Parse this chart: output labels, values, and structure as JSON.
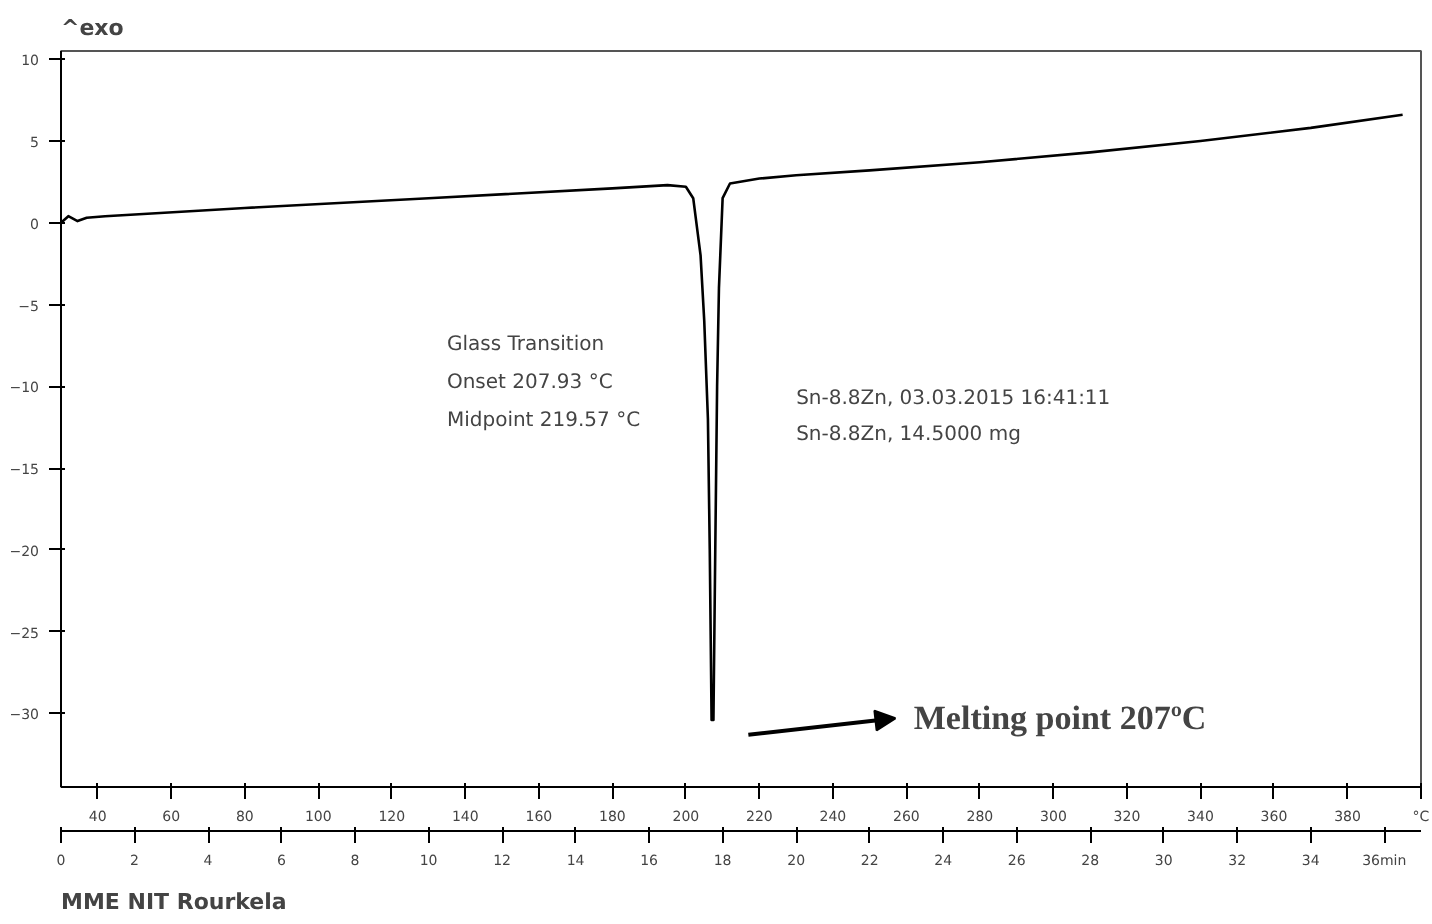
{
  "chart_data": {
    "type": "line",
    "ylabel": "^exo",
    "x": [
      0,
      0.2,
      0.45,
      0.7,
      1.2,
      5,
      10,
      15,
      16.5,
      17.0,
      17.2,
      17.4,
      17.5,
      17.6,
      17.65,
      17.7,
      17.75,
      17.8,
      17.85,
      17.9,
      18.0,
      18.2,
      19,
      20,
      22,
      25,
      28,
      31,
      34,
      36.5
    ],
    "series": [
      {
        "color": "#000000",
        "values": [
          0.0,
          0.4,
          0.1,
          0.3,
          0.4,
          0.9,
          1.5,
          2.1,
          2.3,
          2.2,
          1.5,
          -2,
          -6,
          -12,
          -20,
          -30.4,
          -30.4,
          -20,
          -10,
          -4,
          1.5,
          2.4,
          2.7,
          2.9,
          3.2,
          3.7,
          4.3,
          5.0,
          5.8,
          6.6
        ]
      }
    ],
    "xlim": [
      0,
      37
    ],
    "xticks": [
      0,
      2,
      4,
      6,
      8,
      10,
      12,
      14,
      16,
      18,
      20,
      22,
      24,
      26,
      28,
      30,
      32,
      34,
      {
        "value": 36,
        "label": "36min"
      }
    ],
    "x2lim": [
      30,
      400
    ],
    "x2ticks": [
      40,
      60,
      80,
      100,
      120,
      140,
      160,
      180,
      200,
      220,
      240,
      260,
      280,
      300,
      320,
      340,
      360,
      380,
      {
        "value": 400,
        "label": "°C"
      }
    ],
    "ylim": [
      -34.5,
      10.5
    ],
    "yticks": [
      10,
      5,
      0,
      -5,
      -10,
      -15,
      -20,
      -25,
      -30
    ],
    "grid": false,
    "marker": "none",
    "line_style": "solid",
    "annotations": [
      "Glass Transition",
      "Onset       207.93 °C",
      "Midpoint  219.57 °C",
      "Sn-8.8Zn, 03.03.2015 16:41:11",
      "Sn-8.8Zn, 14.5000 mg",
      "Melting point 207ºC",
      "MME NIT Rourkela"
    ]
  }
}
